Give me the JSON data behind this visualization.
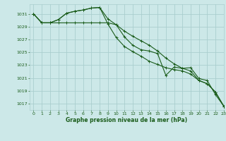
{
  "title": "Graphe pression niveau de la mer (hPa)",
  "bg_color": "#cce8e8",
  "grid_color": "#aacece",
  "line_color": "#1a5c1a",
  "xlim": [
    -0.5,
    23
  ],
  "ylim": [
    1016.0,
    1032.5
  ],
  "yticks": [
    1017,
    1019,
    1021,
    1023,
    1025,
    1027,
    1029,
    1031
  ],
  "xticks": [
    0,
    1,
    2,
    3,
    4,
    5,
    6,
    7,
    8,
    9,
    10,
    11,
    12,
    13,
    14,
    15,
    16,
    17,
    18,
    19,
    20,
    21,
    22,
    23
  ],
  "series": [
    [
      1031.0,
      1029.6,
      1029.6,
      1030.1,
      1031.1,
      1031.4,
      1031.6,
      1031.9,
      1032.0,
      1030.2,
      1029.3,
      1027.4,
      1026.1,
      1025.4,
      1025.2,
      1024.8,
      1021.4,
      1022.7,
      1022.5,
      1022.6,
      1020.9,
      1020.6,
      1018.4,
      1016.6
    ],
    [
      1031.0,
      1029.6,
      1029.6,
      1029.6,
      1029.6,
      1029.6,
      1029.6,
      1029.6,
      1029.6,
      1029.6,
      1029.3,
      1028.3,
      1027.5,
      1026.8,
      1026.1,
      1025.2,
      1024.1,
      1023.2,
      1022.5,
      1022.1,
      1020.6,
      1020.1,
      1018.8,
      1016.6
    ],
    [
      1031.0,
      1029.6,
      1029.6,
      1030.1,
      1031.1,
      1031.4,
      1031.6,
      1031.9,
      1032.0,
      1029.4,
      1027.3,
      1025.9,
      1025.1,
      1024.4,
      1023.6,
      1023.1,
      1022.6,
      1022.3,
      1022.1,
      1021.6,
      1020.6,
      1020.1,
      1018.8,
      1016.6
    ]
  ]
}
